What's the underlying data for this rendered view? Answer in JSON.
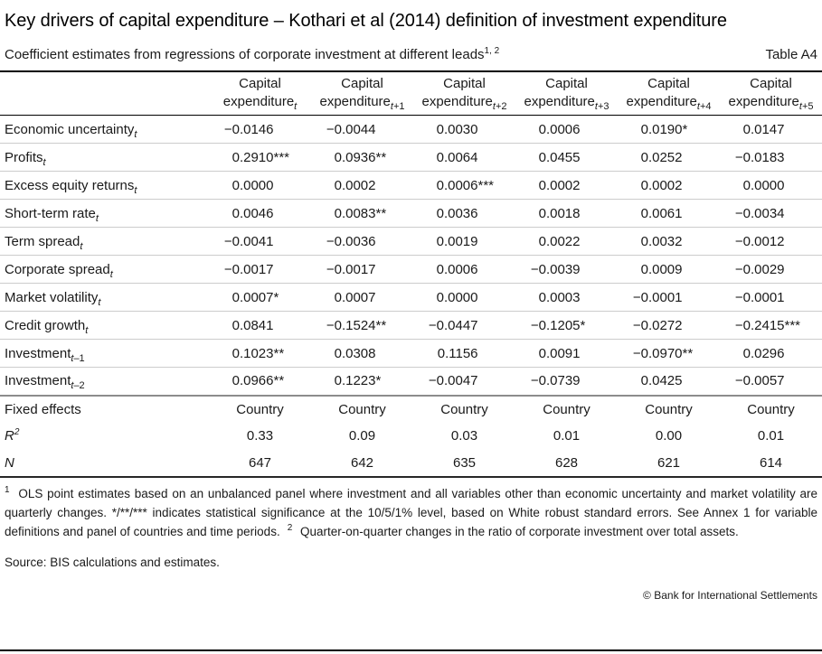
{
  "title": "Key drivers of capital expenditure – Kothari et al (2014) definition of investment expenditure",
  "subtitle": {
    "text": "Coefficient estimates from regressions of corporate investment at different leads",
    "sup": "1, 2",
    "table_label": "Table A4"
  },
  "colors": {
    "text": "#1a1a1a",
    "rule_heavy": "#000000",
    "rule_light": "#cccccc",
    "rule_mid": "#8c8c8c"
  },
  "table": {
    "columns": [
      {
        "line1": "Capital",
        "line2": "expenditure",
        "sub": "t"
      },
      {
        "line1": "Capital",
        "line2": "expenditure",
        "sub": "t+1"
      },
      {
        "line1": "Capital",
        "line2": "expenditure",
        "sub": "t+2"
      },
      {
        "line1": "Capital",
        "line2": "expenditure",
        "sub": "t+3"
      },
      {
        "line1": "Capital",
        "line2": "expenditure",
        "sub": "t+4"
      },
      {
        "line1": "Capital",
        "line2": "expenditure",
        "sub": "t+5"
      }
    ],
    "rows": [
      {
        "label": "Economic uncertainty",
        "sub": "t",
        "cells": [
          "−0.0146",
          "−0.0044",
          "0.0030",
          "0.0006",
          "0.0190*",
          "0.0147"
        ]
      },
      {
        "label": "Profits",
        "sub": "t",
        "cells": [
          "0.2910***",
          "0.0936**",
          "0.0064",
          "0.0455",
          "0.0252",
          "−0.0183"
        ]
      },
      {
        "label": "Excess equity returns",
        "sub": "t",
        "cells": [
          "0.0000",
          "0.0002",
          "0.0006***",
          "0.0002",
          "0.0002",
          "0.0000"
        ]
      },
      {
        "label": "Short-term rate",
        "sub": "t",
        "cells": [
          "0.0046",
          "0.0083**",
          "0.0036",
          "0.0018",
          "0.0061",
          "−0.0034"
        ]
      },
      {
        "label": "Term spread",
        "sub": "t",
        "cells": [
          "−0.0041",
          "−0.0036",
          "0.0019",
          "0.0022",
          "0.0032",
          "−0.0012"
        ]
      },
      {
        "label": "Corporate spread",
        "sub": "t",
        "cells": [
          "−0.0017",
          "−0.0017",
          "0.0006",
          "−0.0039",
          "0.0009",
          "−0.0029"
        ]
      },
      {
        "label": "Market volatility",
        "sub": "t",
        "cells": [
          "0.0007*",
          "0.0007",
          "0.0000",
          "0.0003",
          "−0.0001",
          "−0.0001"
        ]
      },
      {
        "label": "Credit growth",
        "sub": "t",
        "cells": [
          "0.0841",
          "−0.1524**",
          "−0.0447",
          "−0.1205*",
          "−0.0272",
          "−0.2415***"
        ]
      },
      {
        "label": "Investment",
        "sub": "t–1",
        "cells": [
          "0.1023**",
          "0.0308",
          "0.1156",
          "0.0091",
          "−0.0970**",
          "0.0296"
        ]
      },
      {
        "label": "Investment",
        "sub": "t–2",
        "cells": [
          "0.0966**",
          "0.1223*",
          "−0.0047",
          "−0.0739",
          "0.0425",
          "−0.0057"
        ]
      }
    ],
    "summary_rows": [
      {
        "label": "Fixed effects",
        "italic": false,
        "sup": "",
        "cells": [
          "Country",
          "Country",
          "Country",
          "Country",
          "Country",
          "Country"
        ]
      },
      {
        "label": "R",
        "italic": true,
        "sup": "2",
        "cells": [
          "0.33",
          "0.09",
          "0.03",
          "0.01",
          "0.00",
          "0.01"
        ]
      },
      {
        "label": "N",
        "italic": true,
        "sup": "",
        "cells": [
          "647",
          "642",
          "635",
          "628",
          "621",
          "614"
        ]
      }
    ]
  },
  "footnotes": {
    "fn1_sup": "1",
    "fn1_text": "OLS point estimates based on an unbalanced panel where investment and all variables other than economic uncertainty and market volatility are quarterly changes. */**/*** indicates statistical significance at the 10/5/1% level, based on White robust standard errors. See Annex 1 for variable definitions and panel of countries and time periods.",
    "fn2_sup": "2",
    "fn2_text": "Quarter-on-quarter changes in the ratio of corporate investment over total assets."
  },
  "source": "Source: BIS calculations and estimates.",
  "copyright": "© Bank for International Settlements"
}
